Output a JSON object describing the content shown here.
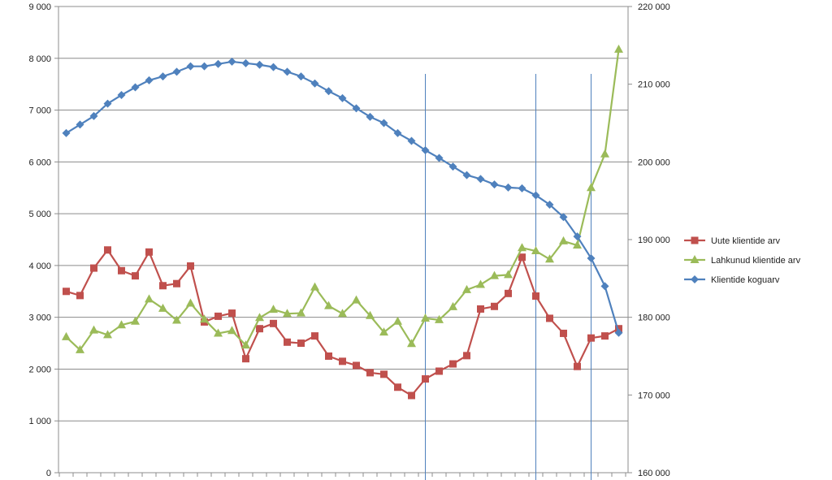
{
  "chart_data": {
    "type": "line",
    "title": "",
    "xlabel": "",
    "ylabel": "",
    "y_left_range": [
      0,
      9000
    ],
    "y_left_ticks": [
      "0",
      "1 000",
      "2 000",
      "3 000",
      "4 000",
      "5 000",
      "6 000",
      "7 000",
      "8 000",
      "9 000"
    ],
    "y_right_range": [
      160000,
      220000
    ],
    "y_right_ticks": [
      "160 000",
      "170 000",
      "180 000",
      "190 000",
      "200 000",
      "210 000",
      "220 000"
    ],
    "grid": true,
    "legend_position": "right",
    "markers_x": [
      26,
      34,
      38
    ],
    "series": [
      {
        "name": "Uute klientide arv",
        "axis": "left",
        "color": "#c0504d",
        "marker": "square",
        "values": [
          3500,
          3420,
          3950,
          4300,
          3900,
          3800,
          4260,
          3610,
          3650,
          3990,
          2910,
          3020,
          3080,
          2200,
          2780,
          2880,
          2520,
          2500,
          2640,
          2250,
          2150,
          2070,
          1930,
          1900,
          1650,
          1490,
          1810,
          1960,
          2100,
          2260,
          3160,
          3210,
          3460,
          4160,
          3410,
          2980,
          2690,
          2050,
          2600,
          2640,
          2780
        ]
      },
      {
        "name": "Lahkunud klientide arv",
        "axis": "left",
        "color": "#9bbb59",
        "marker": "triangle",
        "values": [
          2620,
          2370,
          2750,
          2660,
          2850,
          2920,
          3350,
          3170,
          2940,
          3270,
          2960,
          2690,
          2740,
          2460,
          2990,
          3150,
          3070,
          3080,
          3580,
          3220,
          3070,
          3330,
          3030,
          2710,
          2920,
          2490,
          2980,
          2950,
          3200,
          3530,
          3630,
          3800,
          3820,
          4340,
          4280,
          4120,
          4470,
          4390,
          5500,
          6150,
          8170
        ]
      },
      {
        "name": "Klientide koguarv",
        "axis": "right",
        "color": "#4f81bd",
        "marker": "diamond",
        "values": [
          203700,
          204800,
          205900,
          207500,
          208600,
          209600,
          210500,
          211000,
          211600,
          212300,
          212300,
          212600,
          212900,
          212700,
          212500,
          212200,
          211600,
          211000,
          210100,
          209100,
          208200,
          206900,
          205800,
          205000,
          203700,
          202700,
          201500,
          200500,
          199400,
          198300,
          197800,
          197100,
          196700,
          196600,
          195700,
          194500,
          192900,
          190400,
          187600,
          184000,
          178000
        ]
      }
    ]
  }
}
